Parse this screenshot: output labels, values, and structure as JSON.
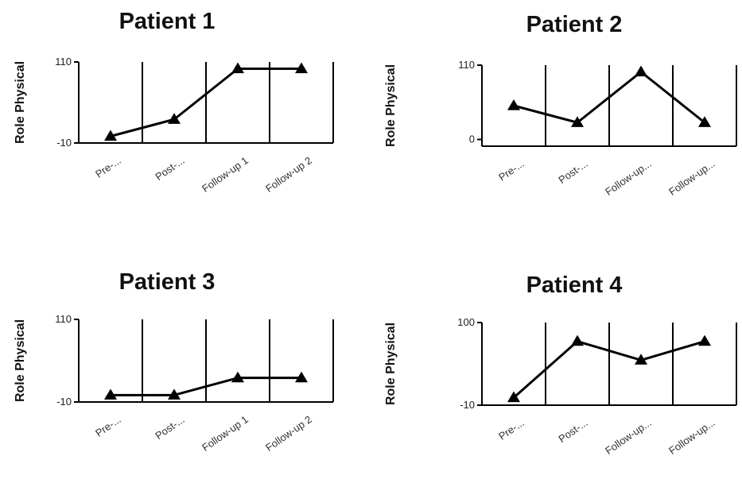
{
  "chart_data": [
    {
      "type": "line",
      "title": "Patient 1",
      "ylabel": "Role Physical",
      "xlabel": "",
      "categories": [
        "Pre-...",
        "Post-...",
        "Follow-up 1",
        "Follow-up 2"
      ],
      "ylim": [
        -10,
        110
      ],
      "yticks": [
        "-10",
        "110"
      ],
      "series": [
        {
          "values": [
            0,
            25,
            100,
            100
          ],
          "marker": "triangle"
        }
      ],
      "grid": "vertical"
    },
    {
      "type": "line",
      "title": "Patient 2",
      "ylabel": "Role Physical",
      "xlabel": "",
      "categories": [
        "Pre-...",
        "Post-...",
        "Follow-up...",
        "Follow-up..."
      ],
      "ylim": [
        -10,
        110
      ],
      "yticks": [
        "0",
        "110"
      ],
      "series": [
        {
          "values": [
            50,
            25,
            100,
            25
          ],
          "marker": "triangle"
        }
      ],
      "grid": "vertical"
    },
    {
      "type": "line",
      "title": "Patient 3",
      "ylabel": "Role Physical",
      "xlabel": "",
      "categories": [
        "Pre-...",
        "Post-...",
        "Follow-up 1",
        "Follow-up 2"
      ],
      "ylim": [
        -10,
        110
      ],
      "yticks": [
        "-10",
        "110"
      ],
      "series": [
        {
          "values": [
            0,
            0,
            25,
            25
          ],
          "marker": "triangle"
        }
      ],
      "grid": "vertical"
    },
    {
      "type": "line",
      "title": "Patient 4",
      "ylabel": "Role Physical",
      "xlabel": "",
      "categories": [
        "Pre-...",
        "Post-...",
        "Follow-up...",
        "Follow-up..."
      ],
      "ylim": [
        -10,
        100
      ],
      "yticks": [
        "-10",
        "100"
      ],
      "series": [
        {
          "values": [
            0,
            75,
            50,
            75
          ],
          "marker": "triangle"
        }
      ],
      "grid": "vertical"
    }
  ]
}
